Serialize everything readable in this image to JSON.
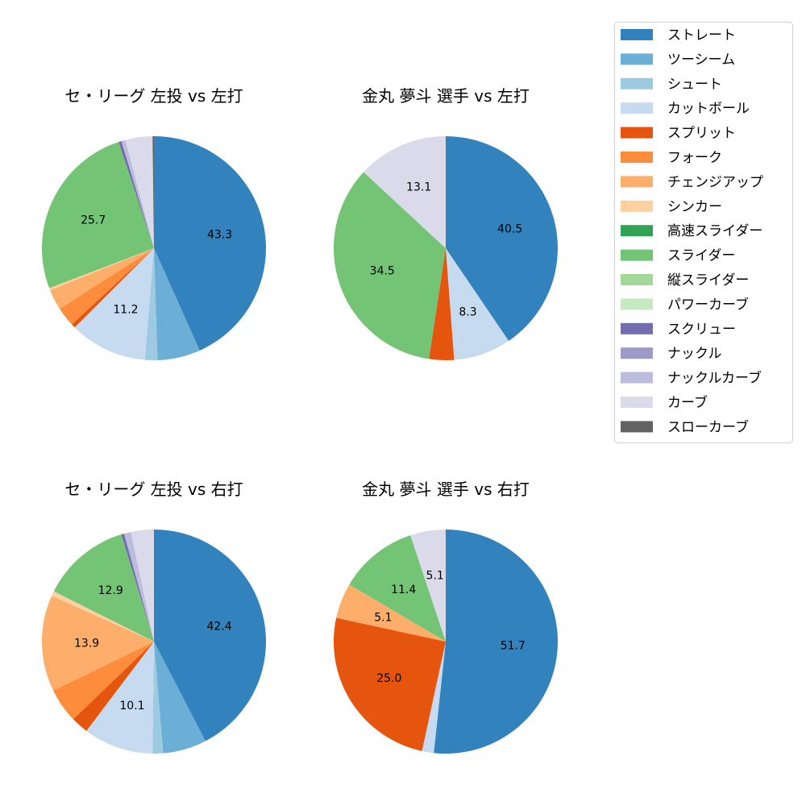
{
  "chart_data": {
    "type": "pie",
    "legend": {
      "placement": "top-right",
      "entries": [
        "ストレート",
        "ツーシーム",
        "シュート",
        "カットボール",
        "スプリット",
        "フォーク",
        "チェンジアップ",
        "シンカー",
        "高速スライダー",
        "スライダー",
        "縦スライダー",
        "パワーカーブ",
        "スクリュー",
        "ナックル",
        "ナックルカーブ",
        "カーブ",
        "スローカーブ"
      ],
      "colors": [
        "#3182bd",
        "#6baed6",
        "#9ecae1",
        "#c6dbef",
        "#e6550d",
        "#fd8d3c",
        "#fdae6b",
        "#fdd0a2",
        "#31a354",
        "#74c476",
        "#a1d99b",
        "#c7e9c0",
        "#756bb1",
        "#9e9ac8",
        "#bcbddc",
        "#dadaeb",
        "#636363"
      ]
    },
    "start_angle": 90,
    "direction": "clockwise",
    "pies": [
      {
        "title": "セ・リーグ 左投 vs 左打",
        "values": [
          43.3,
          6.2,
          1.8,
          11.2,
          0.6,
          2.8,
          3.0,
          0.3,
          0,
          25.7,
          0,
          0,
          0.4,
          0,
          0.6,
          3.9,
          0.2
        ],
        "labels": [
          "43.3",
          "",
          "",
          "11.2",
          "",
          "",
          "",
          "",
          "",
          "25.7",
          "",
          "",
          "",
          "",
          "",
          "",
          ""
        ]
      },
      {
        "title": "金丸 夢斗 選手 vs 左打",
        "values": [
          40.5,
          0,
          0,
          8.3,
          3.6,
          0,
          0,
          0,
          0,
          34.5,
          0,
          0,
          0,
          0,
          0,
          13.1,
          0
        ],
        "labels": [
          "40.5",
          "",
          "",
          "8.3",
          "",
          "",
          "",
          "",
          "",
          "34.5",
          "",
          "",
          "",
          "",
          "",
          "13.1",
          ""
        ]
      },
      {
        "title": "セ・リーグ 左投 vs 右打",
        "values": [
          42.4,
          6.3,
          1.5,
          10.1,
          2.5,
          5.0,
          13.9,
          0.7,
          0,
          12.9,
          0,
          0,
          0.4,
          0,
          1.0,
          3.3,
          0
        ],
        "labels": [
          "42.4",
          "",
          "",
          "10.1",
          "",
          "",
          "13.9",
          "",
          "",
          "12.9",
          "",
          "",
          "",
          "",
          "",
          "",
          ""
        ]
      },
      {
        "title": "金丸 夢斗 選手 vs 右打",
        "values": [
          51.7,
          0,
          0,
          1.7,
          25.0,
          0,
          5.1,
          0,
          0,
          11.4,
          0,
          0,
          0,
          0,
          0,
          5.1,
          0
        ],
        "labels": [
          "51.7",
          "",
          "",
          "",
          "25.0",
          "",
          "5.1",
          "",
          "",
          "11.4",
          "",
          "",
          "",
          "",
          "",
          "5.1",
          ""
        ]
      }
    ]
  }
}
